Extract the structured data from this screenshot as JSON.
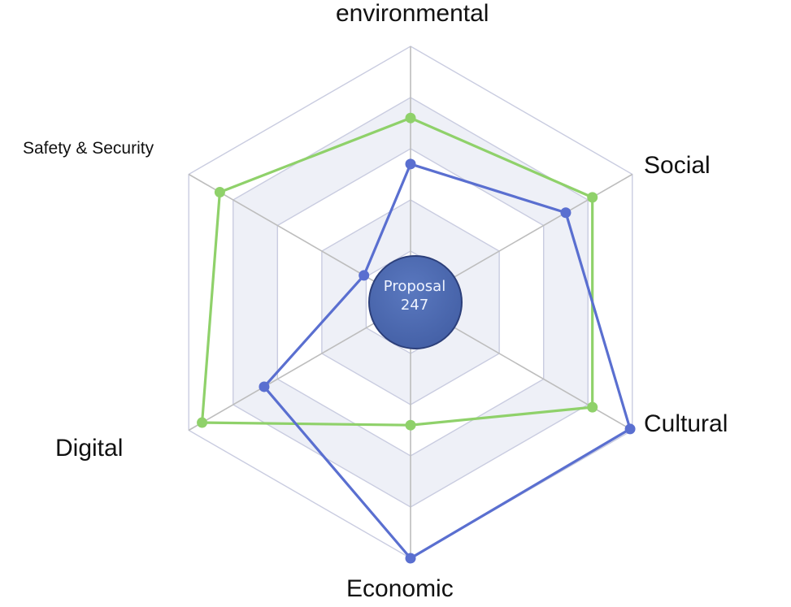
{
  "chart_data": {
    "type": "radar",
    "axes": [
      "environmental",
      "Social",
      "Cultural",
      "Economic",
      "Digital",
      "Safety & Security"
    ],
    "max": 10,
    "rings": 5,
    "series": [
      {
        "values": [
          7.2,
          8.2,
          8.2,
          4.8,
          9.4,
          8.6
        ]
      },
      {
        "values": [
          5.4,
          7.0,
          9.9,
          10.0,
          6.6,
          2.1
        ]
      }
    ],
    "center": {
      "line1": "Proposal",
      "line2": "247"
    },
    "grid": true,
    "legend": "none"
  },
  "colors": {
    "series": [
      "#8fd16a",
      "#5a6fd0"
    ],
    "center_fill": "#4460a6",
    "center_stroke": "#2c3f7a",
    "grid": "#c9cce0",
    "axis": "#bdbdbd",
    "band": "#eef0f7"
  }
}
